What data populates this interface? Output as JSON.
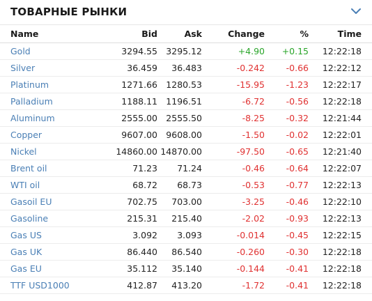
{
  "header": {
    "title": "ТОВАРНЫЕ РЫНКИ",
    "toggle_icon": "chevron-down-icon"
  },
  "colors": {
    "link": "#4a7fb5",
    "positive": "#2aa52a",
    "negative": "#e03131"
  },
  "table": {
    "columns": {
      "name": "Name",
      "bid": "Bid",
      "ask": "Ask",
      "change": "Change",
      "pct": "%",
      "time": "Time"
    },
    "rows": [
      {
        "name": "Gold",
        "bid": "3294.55",
        "ask": "3295.12",
        "change": "+4.90",
        "pct": "+0.15",
        "time": "12:22:18",
        "dir": "pos"
      },
      {
        "name": "Silver",
        "bid": "36.459",
        "ask": "36.483",
        "change": "-0.242",
        "pct": "-0.66",
        "time": "12:22:12",
        "dir": "neg"
      },
      {
        "name": "Platinum",
        "bid": "1271.66",
        "ask": "1280.53",
        "change": "-15.95",
        "pct": "-1.23",
        "time": "12:22:17",
        "dir": "neg"
      },
      {
        "name": "Palladium",
        "bid": "1188.11",
        "ask": "1196.51",
        "change": "-6.72",
        "pct": "-0.56",
        "time": "12:22:18",
        "dir": "neg"
      },
      {
        "name": "Aluminum",
        "bid": "2555.00",
        "ask": "2555.50",
        "change": "-8.25",
        "pct": "-0.32",
        "time": "12:21:44",
        "dir": "neg"
      },
      {
        "name": "Copper",
        "bid": "9607.00",
        "ask": "9608.00",
        "change": "-1.50",
        "pct": "-0.02",
        "time": "12:22:01",
        "dir": "neg"
      },
      {
        "name": "Nickel",
        "bid": "14860.00",
        "ask": "14870.00",
        "change": "-97.50",
        "pct": "-0.65",
        "time": "12:21:40",
        "dir": "neg"
      },
      {
        "name": "Brent oil",
        "bid": "71.23",
        "ask": "71.24",
        "change": "-0.46",
        "pct": "-0.64",
        "time": "12:22:07",
        "dir": "neg"
      },
      {
        "name": "WTI oil",
        "bid": "68.72",
        "ask": "68.73",
        "change": "-0.53",
        "pct": "-0.77",
        "time": "12:22:13",
        "dir": "neg"
      },
      {
        "name": "Gasoil EU",
        "bid": "702.75",
        "ask": "703.00",
        "change": "-3.25",
        "pct": "-0.46",
        "time": "12:22:10",
        "dir": "neg"
      },
      {
        "name": "Gasoline",
        "bid": "215.31",
        "ask": "215.40",
        "change": "-2.02",
        "pct": "-0.93",
        "time": "12:22:13",
        "dir": "neg"
      },
      {
        "name": "Gas US",
        "bid": "3.092",
        "ask": "3.093",
        "change": "-0.014",
        "pct": "-0.45",
        "time": "12:22:15",
        "dir": "neg"
      },
      {
        "name": "Gas UK",
        "bid": "86.440",
        "ask": "86.540",
        "change": "-0.260",
        "pct": "-0.30",
        "time": "12:22:18",
        "dir": "neg"
      },
      {
        "name": "Gas EU",
        "bid": "35.112",
        "ask": "35.140",
        "change": "-0.144",
        "pct": "-0.41",
        "time": "12:22:18",
        "dir": "neg"
      },
      {
        "name": "TTF USD1000",
        "bid": "412.87",
        "ask": "413.20",
        "change": "-1.72",
        "pct": "-0.41",
        "time": "12:22:18",
        "dir": "neg"
      }
    ]
  }
}
